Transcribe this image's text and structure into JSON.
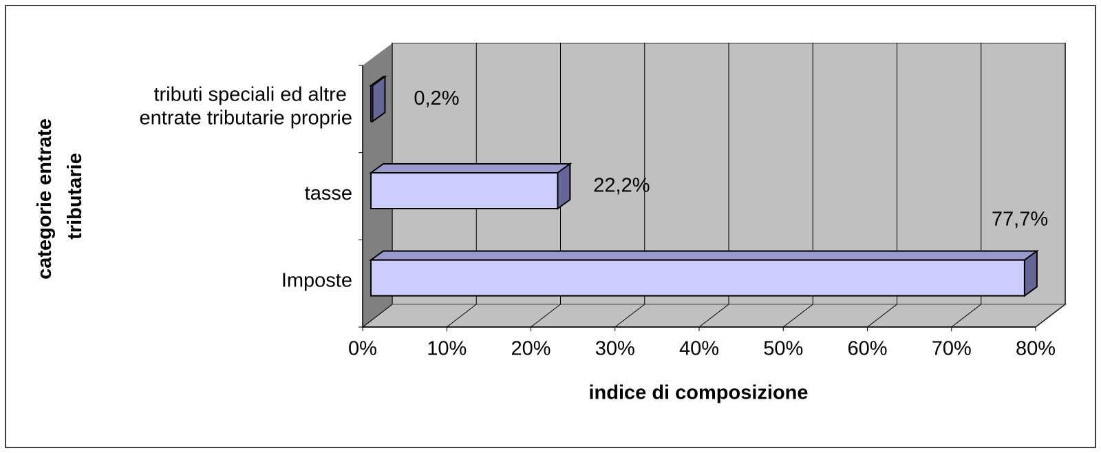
{
  "chart_data": {
    "type": "bar3d_horizontal",
    "categories": [
      "tributi speciali ed altre entrate tributarie proprie",
      "tasse",
      "Imposte"
    ],
    "values": [
      0.2,
      22.2,
      77.7
    ],
    "value_labels": [
      "0,2%",
      "22,2%",
      "77,7%"
    ],
    "color": "#ccccff",
    "xlim": [
      0,
      80
    ],
    "xticks": [
      {
        "value": 0,
        "label": "0%"
      },
      {
        "value": 10,
        "label": "10%"
      },
      {
        "value": 20,
        "label": "20%"
      },
      {
        "value": 30,
        "label": "30%"
      },
      {
        "value": 40,
        "label": "40%"
      },
      {
        "value": 50,
        "label": "50%"
      },
      {
        "value": 60,
        "label": "60%"
      },
      {
        "value": 70,
        "label": "70%"
      },
      {
        "value": 80,
        "label": "80%"
      }
    ],
    "xlabel": "indice di composizione",
    "ylabel": "categorie entrate tributarie",
    "grid": true
  }
}
